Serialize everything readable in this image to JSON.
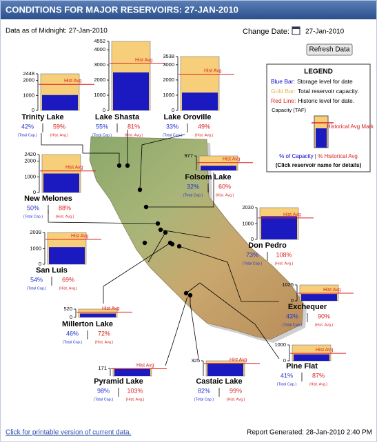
{
  "header": {
    "title": "CONDITIONS FOR MAJOR RESERVOIRS: 27-JAN-2010",
    "data_as_of": "Data as of Midnight: 27-Jan-2010",
    "change_date_label": "Change Date:",
    "change_date": "27-Jan-2010",
    "refresh_button": "Refresh Data"
  },
  "legend": {
    "title": "LEGEND",
    "items": [
      {
        "key": "Blue Bar:",
        "text": "Storage level for date",
        "color": "#0000cc"
      },
      {
        "key": "Gold Bar:",
        "text": "Total reservoir capacity.",
        "color": "#e8b84a"
      },
      {
        "key": "Red Line:",
        "text": "Historic level for date.",
        "color": "#dd2222"
      }
    ],
    "capacity_label": "Capacity (TAF)",
    "hist_mark_label": "Historical Avg Mark",
    "pct_capacity": "% of Capacity",
    "pct_hist": "% Historical Avg",
    "click_note": "(Click reservoir name for details)"
  },
  "labels": {
    "hist_avg_line": "Hist Avg",
    "total_cap": "(Total Cap.)",
    "hist_avg_short": "(Hist. Avg.)"
  },
  "reservoirs": [
    {
      "name": "Trinity Lake",
      "ylim": [
        0,
        2448
      ],
      "yticks": [
        0,
        1000,
        2000,
        2448
      ],
      "capacity": 2448,
      "storage": 1028,
      "hist_avg": 1743,
      "pct_capacity": "42%",
      "pct_hist": "59%"
    },
    {
      "name": "Lake Shasta",
      "ylim": [
        0,
        4552
      ],
      "yticks": [
        0,
        1000,
        2000,
        3000,
        4000,
        4552
      ],
      "capacity": 4552,
      "storage": 2504,
      "hist_avg": 3091,
      "pct_capacity": "55%",
      "pct_hist": "81%"
    },
    {
      "name": "Lake Oroville",
      "ylim": [
        0,
        3538
      ],
      "yticks": [
        0,
        1000,
        2000,
        3000,
        3538
      ],
      "capacity": 3538,
      "storage": 1168,
      "hist_avg": 2383,
      "pct_capacity": "33%",
      "pct_hist": "49%"
    },
    {
      "name": "Folsom Lake",
      "ylim": [
        0,
        977
      ],
      "yticks": [
        977
      ],
      "capacity": 977,
      "storage": 313,
      "hist_avg": 521,
      "pct_capacity": "32%",
      "pct_hist": "60%"
    },
    {
      "name": "New Melones",
      "ylim": [
        0,
        2420
      ],
      "yticks": [
        0,
        1000,
        2000,
        2420
      ],
      "capacity": 2420,
      "storage": 1210,
      "hist_avg": 1375,
      "pct_capacity": "50%",
      "pct_hist": "88%"
    },
    {
      "name": "Don Pedro",
      "ylim": [
        0,
        2030
      ],
      "yticks": [
        0,
        1000,
        2030
      ],
      "capacity": 2030,
      "storage": 1482,
      "hist_avg": 1372,
      "pct_capacity": "73%",
      "pct_hist": "108%"
    },
    {
      "name": "San Luis",
      "ylim": [
        0,
        2039
      ],
      "yticks": [
        0,
        1000,
        2039
      ],
      "capacity": 2039,
      "storage": 1101,
      "hist_avg": 1596,
      "pct_capacity": "54%",
      "pct_hist": "69%"
    },
    {
      "name": "Millerton Lake",
      "ylim": [
        0,
        520
      ],
      "yticks": [
        0,
        520
      ],
      "capacity": 520,
      "storage": 239,
      "hist_avg": 332,
      "pct_capacity": "46%",
      "pct_hist": "72%"
    },
    {
      "name": "Exchequer",
      "ylim": [
        0,
        1025
      ],
      "yticks": [
        0,
        1025
      ],
      "capacity": 1025,
      "storage": 441,
      "hist_avg": 490,
      "pct_capacity": "43%",
      "pct_hist": "90%"
    },
    {
      "name": "Pine Flat",
      "ylim": [
        0,
        1000
      ],
      "yticks": [
        0,
        1000
      ],
      "capacity": 1000,
      "storage": 410,
      "hist_avg": 471,
      "pct_capacity": "41%",
      "pct_hist": "87%"
    },
    {
      "name": "Pyramid Lake",
      "ylim": [
        0,
        171
      ],
      "yticks": [
        171
      ],
      "capacity": 171,
      "storage": 168,
      "hist_avg": 163,
      "pct_capacity": "98%",
      "pct_hist": "103%"
    },
    {
      "name": "Castaic Lake",
      "ylim": [
        0,
        325
      ],
      "yticks": [
        325
      ],
      "capacity": 325,
      "storage": 267,
      "hist_avg": 269,
      "pct_capacity": "82%",
      "pct_hist": "99%"
    }
  ],
  "footer": {
    "print_link": "Click for printable version of current data.",
    "report_generated": "Report Generated: 28-Jan-2010 2:40 PM"
  }
}
